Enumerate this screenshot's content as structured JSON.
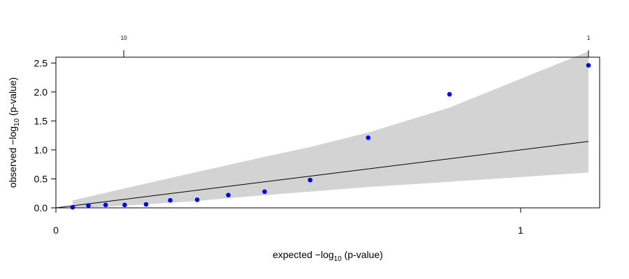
{
  "chart_data": {
    "type": "scatter",
    "xlabel": {
      "prefix": "expected  −log",
      "subscript": "10",
      "suffix": " (p-value)"
    },
    "ylabel": {
      "prefix": "observed  −log",
      "subscript": "10",
      "suffix": " (p-value)"
    },
    "xlim": [
      0,
      1.17
    ],
    "ylim": [
      0,
      2.6
    ],
    "x_ticks": [
      0,
      1
    ],
    "x_tick_labels": [
      "0",
      "1"
    ],
    "y_ticks": [
      0,
      0.5,
      1.0,
      1.5,
      2.0,
      2.5
    ],
    "y_tick_labels": [
      "0.0",
      "0.5",
      "1.0",
      "1.5",
      "2.0",
      "2.5"
    ],
    "top_ticks": [
      {
        "x": 0.146,
        "label": "10"
      },
      {
        "x": 1.146,
        "label": "1"
      }
    ],
    "points": [
      {
        "x": 0.036,
        "y": 0.01
      },
      {
        "x": 0.07,
        "y": 0.04
      },
      {
        "x": 0.107,
        "y": 0.05
      },
      {
        "x": 0.148,
        "y": 0.05
      },
      {
        "x": 0.194,
        "y": 0.06
      },
      {
        "x": 0.246,
        "y": 0.13
      },
      {
        "x": 0.304,
        "y": 0.14
      },
      {
        "x": 0.371,
        "y": 0.22
      },
      {
        "x": 0.449,
        "y": 0.28
      },
      {
        "x": 0.547,
        "y": 0.48
      },
      {
        "x": 0.672,
        "y": 1.21
      },
      {
        "x": 0.847,
        "y": 1.96
      },
      {
        "x": 1.146,
        "y": 2.46
      }
    ],
    "reference_line": {
      "x": [
        0,
        1.146
      ],
      "y": [
        0,
        1.146
      ]
    },
    "confidence_band": {
      "x": [
        0.036,
        0.107,
        0.194,
        0.304,
        0.449,
        0.547,
        0.672,
        0.847,
        1.146
      ],
      "upper": [
        0.13,
        0.26,
        0.42,
        0.62,
        0.88,
        1.05,
        1.3,
        1.73,
        2.7
      ],
      "lower": [
        0.0,
        0.02,
        0.06,
        0.12,
        0.22,
        0.28,
        0.36,
        0.45,
        0.61
      ]
    },
    "point_color": "#0000ff",
    "band_color": "#d3d3d3",
    "grid": false
  }
}
